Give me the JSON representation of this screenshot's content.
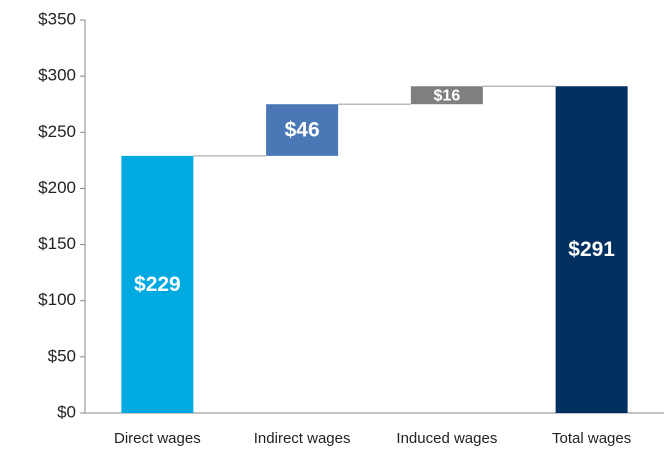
{
  "chart_data": {
    "type": "waterfall",
    "categories": [
      "Direct wages",
      "Indirect wages",
      "Induced wages",
      "Total wages"
    ],
    "values": [
      229,
      46,
      16,
      291
    ],
    "value_labels": [
      "$229",
      "$46",
      "$16",
      "$291"
    ],
    "is_total": [
      false,
      false,
      false,
      true
    ],
    "colors": [
      "#00a9e0",
      "#4a78b6",
      "#7f7f7f",
      "#00305f"
    ],
    "ylim": [
      0,
      350
    ],
    "yticks": [
      {
        "value": 0,
        "label": "$0"
      },
      {
        "value": 50,
        "label": "$50"
      },
      {
        "value": 100,
        "label": "$100"
      },
      {
        "value": 150,
        "label": "$150"
      },
      {
        "value": 200,
        "label": "$200"
      },
      {
        "value": 250,
        "label": "$250"
      },
      {
        "value": 300,
        "label": "$300"
      },
      {
        "value": 350,
        "label": "$350"
      }
    ]
  }
}
